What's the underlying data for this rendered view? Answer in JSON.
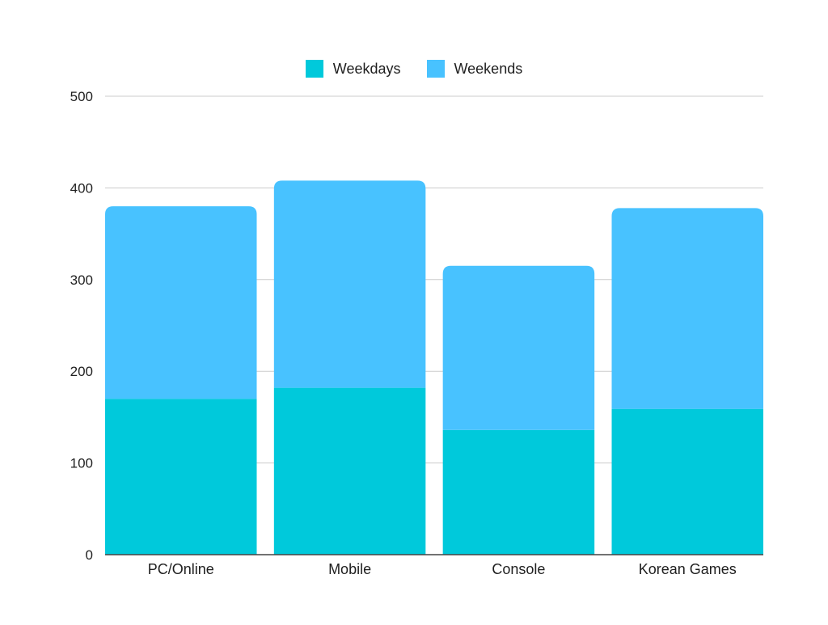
{
  "chart_data": {
    "type": "bar",
    "stacked": true,
    "categories": [
      "PC/Online",
      "Mobile",
      "Console",
      "Korean Games"
    ],
    "series": [
      {
        "name": "Weekdays",
        "values": [
          170,
          182,
          136,
          159
        ],
        "color": "#00C9DB"
      },
      {
        "name": "Weekends",
        "values": [
          210,
          226,
          179,
          219
        ],
        "color": "#48C2FF"
      }
    ],
    "title": "",
    "xlabel": "",
    "ylabel": "",
    "ylim": [
      0,
      500
    ],
    "yticks": [
      "0",
      "100",
      "200",
      "300",
      "400",
      "500"
    ],
    "grid": true,
    "legend_position": "top-center"
  }
}
